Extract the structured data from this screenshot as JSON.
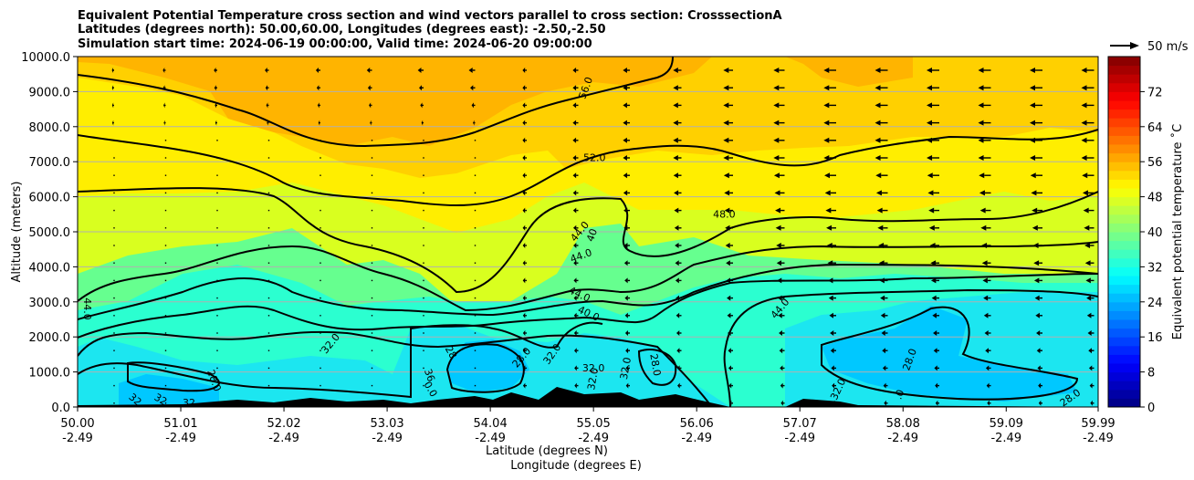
{
  "chart_data": {
    "type": "heatmap",
    "title_lines": [
      "Equivalent Potential Temperature cross section and wind vectors parallel to cross section: CrosssectionA",
      "Latitudes (degrees north): 50.00,60.00, Longitudes (degrees east): -2.50,-2.50",
      "Simulation start time: 2024-06-19 00:00:00, Valid time: 2024-06-20 09:00:00"
    ],
    "ylabel": "Altitude (meters)",
    "xlabel_lines": [
      "Latitude (degrees N)",
      "Longitude (degrees E)"
    ],
    "ylim": [
      0,
      10000
    ],
    "xlim": [
      50.0,
      59.99
    ],
    "y_ticks": [
      0,
      1000,
      2000,
      3000,
      4000,
      5000,
      6000,
      7000,
      8000,
      9000,
      10000
    ],
    "y_tick_labels": [
      "0.0",
      "1000.0",
      "2000.0",
      "3000.0",
      "4000.0",
      "5000.0",
      "6000.0",
      "7000.0",
      "8000.0",
      "9000.0",
      "10000.0"
    ],
    "x_ticks": [
      50.0,
      51.01,
      52.02,
      53.03,
      54.04,
      55.05,
      56.06,
      57.07,
      58.08,
      59.09,
      59.99
    ],
    "x_tick_labels_lat": [
      "50.00",
      "51.01",
      "52.02",
      "53.03",
      "54.04",
      "55.05",
      "56.06",
      "57.07",
      "58.08",
      "59.09",
      "59.99"
    ],
    "x_tick_labels_lon": [
      "-2.49",
      "-2.49",
      "-2.49",
      "-2.49",
      "-2.49",
      "-2.49",
      "-2.49",
      "-2.49",
      "-2.49",
      "-2.49",
      "-2.49"
    ],
    "grid": "horizontal",
    "colorbar": {
      "label": "Equivalent potential temperature ˚C",
      "range": [
        0,
        80
      ],
      "ticks": [
        0,
        8,
        16,
        24,
        32,
        40,
        48,
        56,
        64,
        72
      ],
      "tick_labels": [
        "0",
        "8",
        "16",
        "24",
        "32",
        "40",
        "48",
        "56",
        "64",
        "72"
      ],
      "colormap": "jet"
    },
    "quiver_key": "50 m/s",
    "contour_labels": [
      {
        "text": "56.0",
        "x": 54.98,
        "y": 9100,
        "rot": -70
      },
      {
        "text": "52.0",
        "x": 55.06,
        "y": 7100,
        "rot": 0
      },
      {
        "text": "48.0",
        "x": 56.33,
        "y": 5480,
        "rot": 0
      },
      {
        "text": "44.0",
        "x": 54.92,
        "y": 5000,
        "rot": -50
      },
      {
        "text": "40",
        "x": 55.04,
        "y": 4900,
        "rot": -70
      },
      {
        "text": "44.0",
        "x": 54.93,
        "y": 4300,
        "rot": -20
      },
      {
        "text": "44.0",
        "x": 54.91,
        "y": 3200,
        "rot": 25
      },
      {
        "text": "40.0",
        "x": 55.0,
        "y": 2650,
        "rot": 25
      },
      {
        "text": "44.0",
        "x": 56.88,
        "y": 2800,
        "rot": -50
      },
      {
        "text": "44.0",
        "x": 50.09,
        "y": 2800,
        "rot": 90
      },
      {
        "text": "32.0",
        "x": 52.48,
        "y": 1800,
        "rot": -50
      },
      {
        "text": "28",
        "x": 53.65,
        "y": 1550,
        "rot": 60
      },
      {
        "text": "28.0",
        "x": 54.35,
        "y": 1400,
        "rot": -50
      },
      {
        "text": "32.0",
        "x": 54.65,
        "y": 1500,
        "rot": -55
      },
      {
        "text": "32.0",
        "x": 55.05,
        "y": 1100,
        "rot": 0
      },
      {
        "text": "32.0",
        "x": 55.37,
        "y": 1100,
        "rot": -80
      },
      {
        "text": "28.0",
        "x": 55.65,
        "y": 1200,
        "rot": 80
      },
      {
        "text": "32.0",
        "x": 55.05,
        "y": 800,
        "rot": -80
      },
      {
        "text": "36",
        "x": 53.44,
        "y": 900,
        "rot": 70
      },
      {
        "text": "0.0",
        "x": 53.45,
        "y": 500,
        "rot": 60
      },
      {
        "text": "28.0",
        "x": 51.33,
        "y": 750,
        "rot": 70
      },
      {
        "text": "32",
        "x": 50.56,
        "y": 200,
        "rot": 40
      },
      {
        "text": "32",
        "x": 50.81,
        "y": 200,
        "rot": 30
      },
      {
        "text": "32",
        "x": 51.09,
        "y": 100,
        "rot": 0
      },
      {
        "text": "32.0",
        "x": 57.45,
        "y": 500,
        "rot": -65
      },
      {
        "text": "28.0",
        "x": 58.15,
        "y": 1350,
        "rot": -70
      },
      {
        "text": ".0",
        "x": 58.05,
        "y": 350,
        "rot": -70
      },
      {
        "text": "28.0",
        "x": 59.72,
        "y": 250,
        "rot": -35
      }
    ]
  }
}
